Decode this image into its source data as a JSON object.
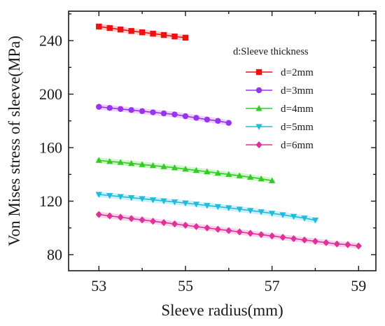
{
  "chart_data": {
    "type": "line",
    "title": "",
    "xlabel": "Sleeve radius(mm)",
    "ylabel": "Von Mises stress of sleeve(MPa)",
    "xlim": [
      52.3,
      59.4
    ],
    "ylim": [
      68,
      262
    ],
    "xticks": [
      53,
      55,
      57,
      59
    ],
    "yticks": [
      80,
      120,
      160,
      200,
      240
    ],
    "grid": false,
    "legend": {
      "title": "d:Sleeve thickness",
      "placement": "top-right"
    },
    "series": [
      {
        "name": "d=2mm",
        "color": "#ee1111",
        "marker": "square",
        "x": [
          53.0,
          53.25,
          53.5,
          53.75,
          54.0,
          54.25,
          54.5,
          54.75,
          55.0
        ],
        "y": [
          250.5,
          249.4,
          248.3,
          247.2,
          246.2,
          245.2,
          244.2,
          243.1,
          242.2
        ]
      },
      {
        "name": "d=3mm",
        "color": "#9933ee",
        "marker": "circle",
        "x": [
          53.0,
          53.25,
          53.5,
          53.75,
          54.0,
          54.25,
          54.5,
          54.75,
          55.0,
          55.25,
          55.5,
          55.75,
          56.0
        ],
        "y": [
          190.5,
          189.7,
          188.9,
          188.1,
          187.3,
          186.4,
          185.6,
          184.8,
          183.5,
          182.3,
          181.0,
          180.0,
          178.5
        ]
      },
      {
        "name": "d=4mm",
        "color": "#33cc22",
        "marker": "triangle-up",
        "x": [
          53.0,
          53.25,
          53.5,
          53.75,
          54.0,
          54.25,
          54.5,
          54.75,
          55.0,
          55.25,
          55.5,
          55.75,
          56.0,
          56.25,
          56.5,
          56.75,
          57.0
        ],
        "y": [
          150.5,
          149.7,
          149.0,
          148.2,
          147.4,
          146.6,
          145.8,
          145.0,
          144.0,
          143.0,
          142.0,
          141.0,
          140.0,
          139.0,
          137.9,
          136.7,
          135.3
        ]
      },
      {
        "name": "d=5mm",
        "color": "#22bbdd",
        "marker": "triangle-down",
        "x": [
          53.0,
          53.25,
          53.5,
          53.75,
          54.0,
          54.25,
          54.5,
          54.75,
          55.0,
          55.25,
          55.5,
          55.75,
          56.0,
          56.25,
          56.5,
          56.75,
          57.0,
          57.25,
          57.5,
          57.75,
          58.0
        ],
        "y": [
          125.0,
          124.2,
          123.4,
          122.6,
          121.8,
          121.0,
          120.2,
          119.4,
          118.6,
          117.7,
          116.8,
          115.9,
          115.0,
          114.0,
          113.0,
          112.0,
          110.9,
          109.8,
          108.6,
          107.3,
          105.8
        ]
      },
      {
        "name": "d=6mm",
        "color": "#dd3399",
        "marker": "diamond",
        "x": [
          53.0,
          53.25,
          53.5,
          53.75,
          54.0,
          54.25,
          54.5,
          54.75,
          55.0,
          55.25,
          55.5,
          55.75,
          56.0,
          56.25,
          56.5,
          56.75,
          57.0,
          57.25,
          57.5,
          57.75,
          58.0,
          58.25,
          58.5,
          58.75,
          59.0
        ],
        "y": [
          110.0,
          109.0,
          108.0,
          107.0,
          106.0,
          105.0,
          104.0,
          103.0,
          102.0,
          101.0,
          100.0,
          99.0,
          98.0,
          97.0,
          96.0,
          95.0,
          94.0,
          93.0,
          92.0,
          91.0,
          90.0,
          89.0,
          88.0,
          87.5,
          86.5
        ]
      }
    ]
  }
}
